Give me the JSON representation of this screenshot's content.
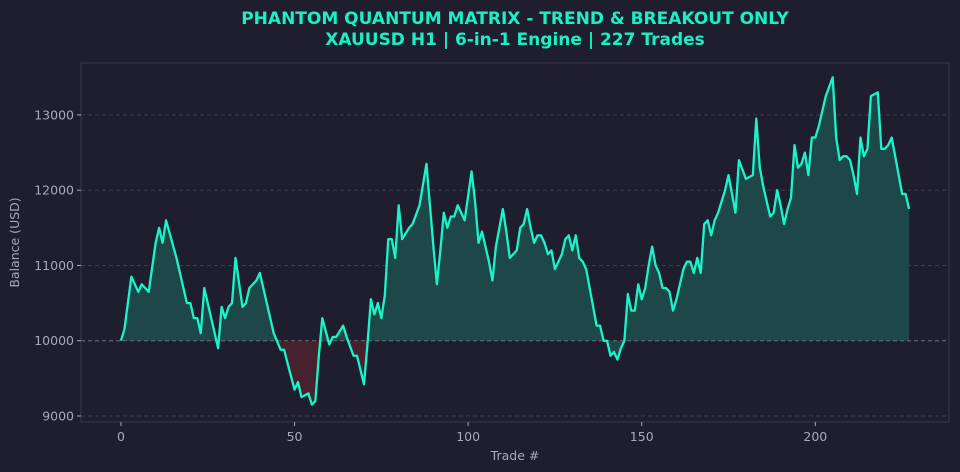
{
  "chart_data": {
    "type": "area",
    "title": "PHANTOM QUANTUM MATRIX - TREND & BREAKOUT ONLY",
    "subtitle": "XAUUSD H1 | 6-in-1 Engine | 227 Trades",
    "xlabel": "Trade #",
    "ylabel": "Balance (USD)",
    "xlim": [
      -11.5,
      238.5
    ],
    "ylim": [
      8920,
      13690
    ],
    "xticks": [
      0,
      50,
      100,
      150,
      200
    ],
    "yticks": [
      9000,
      10000,
      11000,
      12000,
      13000
    ],
    "baseline": 10000,
    "grid": "horizontal-dashed",
    "series": [
      {
        "x": [
          0,
          1,
          3,
          5,
          6,
          8,
          10,
          11,
          12,
          13,
          16,
          19,
          20,
          21,
          22,
          23,
          24,
          25,
          27,
          28,
          29,
          30,
          31,
          32,
          33,
          35,
          36,
          37,
          39,
          40,
          41,
          43,
          44,
          46,
          47,
          48,
          50,
          51,
          52,
          54,
          55,
          56,
          57,
          58,
          60,
          61,
          62,
          64,
          65,
          67,
          68,
          70,
          71,
          72,
          73,
          74,
          75,
          76,
          77,
          78,
          79,
          80,
          81,
          83,
          84,
          86,
          88,
          89,
          90,
          91,
          92,
          93,
          94,
          95,
          96,
          97,
          99,
          101,
          102,
          103,
          104,
          106,
          107,
          108,
          110,
          111,
          112,
          114,
          115,
          116,
          117,
          118,
          119,
          120,
          121,
          122,
          123,
          124,
          125,
          126,
          127,
          128,
          129,
          130,
          131,
          132,
          133,
          134,
          137,
          138,
          139,
          140,
          141,
          142,
          143,
          144,
          145,
          146,
          147,
          148,
          149,
          150,
          151,
          152,
          153,
          154,
          155,
          156,
          157,
          158,
          159,
          160,
          162,
          163,
          164,
          165,
          166,
          167,
          168,
          169,
          170,
          171,
          172,
          173,
          174,
          175,
          176,
          177,
          178,
          180,
          182,
          183,
          184,
          185,
          186,
          187,
          188,
          189,
          190,
          191,
          192,
          193,
          194,
          195,
          196,
          197,
          198,
          199,
          200,
          201,
          203,
          205,
          206,
          207,
          208,
          209,
          210,
          211,
          212,
          213,
          214,
          215,
          216,
          218,
          219,
          220,
          221,
          222,
          223,
          224,
          225,
          226,
          227
        ],
        "y": [
          10000,
          10150,
          10850,
          10650,
          10750,
          10650,
          11300,
          11500,
          11300,
          11600,
          11100,
          10500,
          10500,
          10300,
          10300,
          10100,
          10700,
          10500,
          10100,
          9900,
          10450,
          10300,
          10450,
          10500,
          11100,
          10450,
          10500,
          10700,
          10800,
          10900,
          10700,
          10300,
          10100,
          9880,
          9880,
          9700,
          9350,
          9450,
          9250,
          9300,
          9150,
          9200,
          9800,
          10300,
          9950,
          10050,
          10050,
          10200,
          10050,
          9800,
          9800,
          9420,
          9950,
          10550,
          10350,
          10500,
          10300,
          10600,
          11350,
          11350,
          11100,
          11800,
          11350,
          11500,
          11550,
          11800,
          12350,
          11800,
          11250,
          10750,
          11200,
          11700,
          11500,
          11650,
          11650,
          11800,
          11600,
          12250,
          11850,
          11300,
          11450,
          11050,
          10800,
          11250,
          11750,
          11450,
          11100,
          11200,
          11500,
          11550,
          11750,
          11500,
          11300,
          11400,
          11400,
          11300,
          11150,
          11200,
          10950,
          11050,
          11150,
          11350,
          11400,
          11200,
          11400,
          11100,
          11050,
          10950,
          10200,
          10200,
          10000,
          10000,
          9800,
          9850,
          9750,
          9900,
          10000,
          10620,
          10400,
          10400,
          10750,
          10550,
          10700,
          11000,
          11250,
          11000,
          10900,
          10700,
          10700,
          10650,
          10400,
          10550,
          10950,
          11050,
          11050,
          10900,
          11100,
          10900,
          11550,
          11600,
          11400,
          11600,
          11700,
          11850,
          12000,
          12200,
          11950,
          11700,
          12400,
          12150,
          12200,
          12950,
          12300,
          12050,
          11850,
          11650,
          11700,
          12000,
          11800,
          11550,
          11750,
          11900,
          12600,
          12300,
          12350,
          12500,
          12200,
          12700,
          12700,
          12850,
          13250,
          13500,
          12700,
          12400,
          12450,
          12450,
          12400,
          12200,
          11950,
          12700,
          12450,
          12550,
          13250,
          13300,
          12550,
          12550,
          12600,
          12700,
          12450,
          12200,
          11950,
          11950,
          11750
        ]
      }
    ],
    "colors": {
      "line": "#19f5c8",
      "fill_profit": "#1d4a4a",
      "fill_loss": "#4a2230",
      "title": "#19f0c4",
      "tick": "#a8a8b8",
      "axis_frame": "#3a3a4a",
      "grid": "#3d3d50"
    }
  }
}
